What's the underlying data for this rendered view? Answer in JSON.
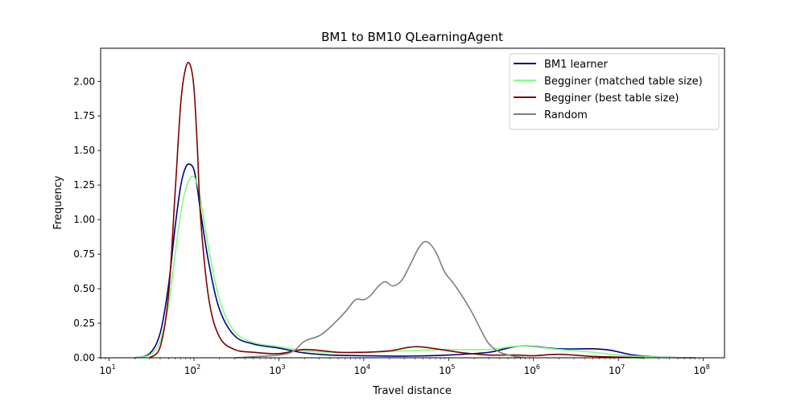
{
  "chart_data": {
    "type": "line",
    "title": "BM1 to BM10 QLearningAgent",
    "xlabel": "Travel distance",
    "ylabel": "Frequency",
    "xscale": "log",
    "xlim_exponent": [
      0.9,
      8.25
    ],
    "ylim": [
      0,
      2.24
    ],
    "xticks": [
      {
        "exp": 1,
        "label": "10",
        "sup": "1"
      },
      {
        "exp": 2,
        "label": "10",
        "sup": "2"
      },
      {
        "exp": 3,
        "label": "10",
        "sup": "3"
      },
      {
        "exp": 4,
        "label": "10",
        "sup": "4"
      },
      {
        "exp": 5,
        "label": "10",
        "sup": "5"
      },
      {
        "exp": 6,
        "label": "10",
        "sup": "6"
      },
      {
        "exp": 7,
        "label": "10",
        "sup": "7"
      },
      {
        "exp": 8,
        "label": "10",
        "sup": "8"
      }
    ],
    "yticks": [
      "0.00",
      "0.25",
      "0.50",
      "0.75",
      "1.00",
      "1.25",
      "1.50",
      "1.75",
      "2.00"
    ],
    "legend_position": "top-right",
    "series": [
      {
        "name": "BM1 learner",
        "color": "#00007f",
        "x": [
          20,
          30,
          40,
          50,
          60,
          70,
          80,
          90,
          100,
          110,
          120,
          150,
          200,
          300,
          500,
          1000,
          2000,
          4000,
          10000,
          30000,
          100000,
          300000,
          700000,
          2000000,
          5000000,
          8000000,
          15000000,
          30000000,
          80000000
        ],
        "y": [
          0,
          0.03,
          0.18,
          0.52,
          0.95,
          1.25,
          1.38,
          1.4,
          1.36,
          1.22,
          1.05,
          0.68,
          0.35,
          0.16,
          0.1,
          0.07,
          0.035,
          0.02,
          0.015,
          0.012,
          0.02,
          0.04,
          0.085,
          0.065,
          0.065,
          0.055,
          0.02,
          0.005,
          0
        ]
      },
      {
        "name": "Begginer (matched table size)",
        "color": "#7fff7f",
        "x": [
          20,
          30,
          40,
          50,
          60,
          70,
          80,
          90,
          100,
          110,
          120,
          150,
          200,
          300,
          500,
          1000,
          2000,
          4000,
          10000,
          30000,
          100000,
          300000,
          700000,
          2000000,
          5000000,
          10000000,
          30000000,
          80000000
        ],
        "y": [
          0,
          0.02,
          0.12,
          0.38,
          0.75,
          1.05,
          1.22,
          1.3,
          1.31,
          1.25,
          1.14,
          0.78,
          0.42,
          0.19,
          0.11,
          0.08,
          0.05,
          0.04,
          0.04,
          0.05,
          0.06,
          0.06,
          0.085,
          0.06,
          0.04,
          0.02,
          0.004,
          0
        ]
      },
      {
        "name": "Begginer (best table size)",
        "color": "#7f0000",
        "x": [
          30,
          40,
          50,
          60,
          70,
          80,
          90,
          100,
          110,
          120,
          150,
          200,
          300,
          500,
          1000,
          2000,
          5000,
          10000,
          20000,
          40000,
          80000,
          150000,
          300000,
          600000,
          1000000,
          2000000,
          5000000,
          10000000,
          20000000
        ],
        "y": [
          0,
          0.08,
          0.45,
          1.2,
          1.85,
          2.1,
          2.12,
          1.95,
          1.5,
          1.0,
          0.42,
          0.15,
          0.06,
          0.04,
          0.03,
          0.06,
          0.04,
          0.04,
          0.05,
          0.08,
          0.06,
          0.035,
          0.02,
          0.02,
          0.015,
          0.025,
          0.01,
          0.005,
          0
        ]
      },
      {
        "name": "Random",
        "color": "#7f7f7f",
        "x": [
          300,
          1000,
          1500,
          2000,
          3000,
          4000,
          6000,
          8000,
          10000,
          12000,
          15000,
          18000,
          22000,
          28000,
          35000,
          45000,
          55000,
          70000,
          90000,
          120000,
          180000,
          250000,
          300000,
          400000,
          600000,
          800000
        ],
        "y": [
          0,
          0.02,
          0.05,
          0.12,
          0.16,
          0.22,
          0.33,
          0.42,
          0.42,
          0.45,
          0.52,
          0.55,
          0.52,
          0.56,
          0.67,
          0.8,
          0.84,
          0.77,
          0.62,
          0.52,
          0.35,
          0.18,
          0.1,
          0.04,
          0.01,
          0
        ]
      }
    ]
  }
}
